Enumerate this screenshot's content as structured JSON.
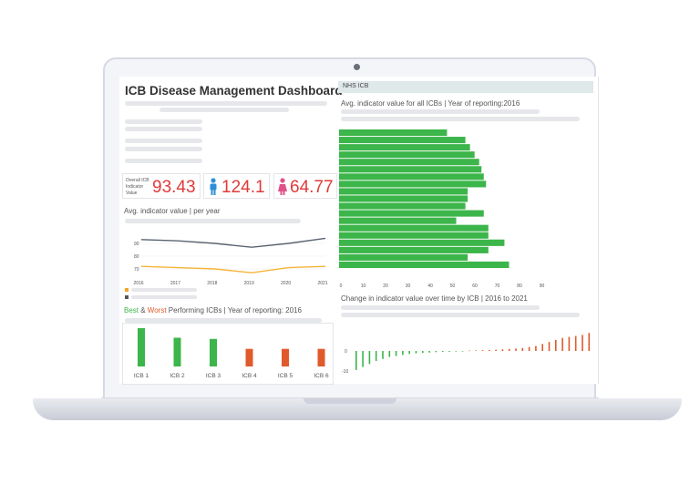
{
  "dashboard": {
    "title": "ICB Disease Management Dashboard",
    "kpi_label_line1": "Overall ICB",
    "kpi_label_line2": "Indicator",
    "kpi_label_line3": "Value",
    "kpi_overall": "93.43",
    "kpi_male": "124.1",
    "kpi_female": "64.77",
    "kpi_value_color": "#e03a3a"
  },
  "line_section": {
    "title": "Avg. indicator value | per year",
    "y_ticks": [
      "90",
      "80",
      "70"
    ],
    "x_ticks": [
      "2016",
      "2017",
      "2018",
      "2019",
      "2020",
      "2021"
    ]
  },
  "best_worst": {
    "best_word": "Best",
    "amp": " & ",
    "worst_word": "Worst",
    "rest": " Performing ICBs | Year of reporting: 2016",
    "best_color": "#3cb54a",
    "worst_color": "#e05a2b",
    "labels": [
      "ICB 1",
      "ICB 2",
      "ICB 3",
      "ICB 4",
      "ICB 5",
      "ICB 6"
    ],
    "values": [
      1.0,
      0.75,
      0.72,
      0.46,
      0.46,
      0.46
    ]
  },
  "right_panel": {
    "header": "NHS ICB",
    "bar_title": "Avg. indicator value for all ICBs  | Year of reporting:2016",
    "bar_x_ticks": [
      "0",
      "10",
      "20",
      "30",
      "40",
      "50",
      "60",
      "70",
      "80",
      "90"
    ],
    "change_title": "Change in indicator value over time by ICB | 2016 to 2021",
    "change_y_ticks": [
      "0",
      "-10"
    ]
  },
  "chart_data": [
    {
      "type": "line",
      "title": "Avg. indicator value | per year",
      "x": [
        2016,
        2017,
        2018,
        2019,
        2020,
        2021
      ],
      "series": [
        {
          "values": [
            93,
            92,
            90,
            87,
            90,
            94
          ]
        },
        {
          "values": [
            72,
            71,
            70,
            67,
            71,
            72
          ]
        }
      ],
      "ylim": [
        65,
        95
      ],
      "grid": true
    },
    {
      "type": "bar",
      "title": "Best & Worst Performing ICBs | Year of reporting: 2016",
      "categories": [
        "ICB 1",
        "ICB 2",
        "ICB 3",
        "ICB 4",
        "ICB 5",
        "ICB 6"
      ],
      "values": [
        1.0,
        0.75,
        0.72,
        0.46,
        0.46,
        0.46
      ]
    },
    {
      "type": "bar",
      "orientation": "horizontal",
      "title": "Avg. indicator value for all ICBs  | Year of reporting:2016",
      "values": [
        47,
        55,
        57,
        59,
        61,
        62,
        63,
        64,
        56,
        56,
        55,
        63,
        51,
        65,
        65,
        72,
        65,
        56,
        74
      ],
      "xlim": [
        0,
        90
      ]
    },
    {
      "type": "bar",
      "title": "Change in indicator value over time by ICB | 2016 to 2021",
      "values": [
        -9.5,
        -8,
        -6.5,
        -5,
        -4,
        -3,
        -2.5,
        -2,
        -1.5,
        -1.2,
        -1,
        -0.8,
        -0.6,
        -0.5,
        -0.4,
        -0.3,
        -0.2,
        0.2,
        0.3,
        0.4,
        0.5,
        0.6,
        0.8,
        1,
        1.2,
        1.5,
        2,
        2.5,
        3.5,
        4.5,
        5.5,
        6.5,
        7,
        7.5,
        8,
        9
      ],
      "ylim": [
        -12,
        10
      ]
    }
  ]
}
